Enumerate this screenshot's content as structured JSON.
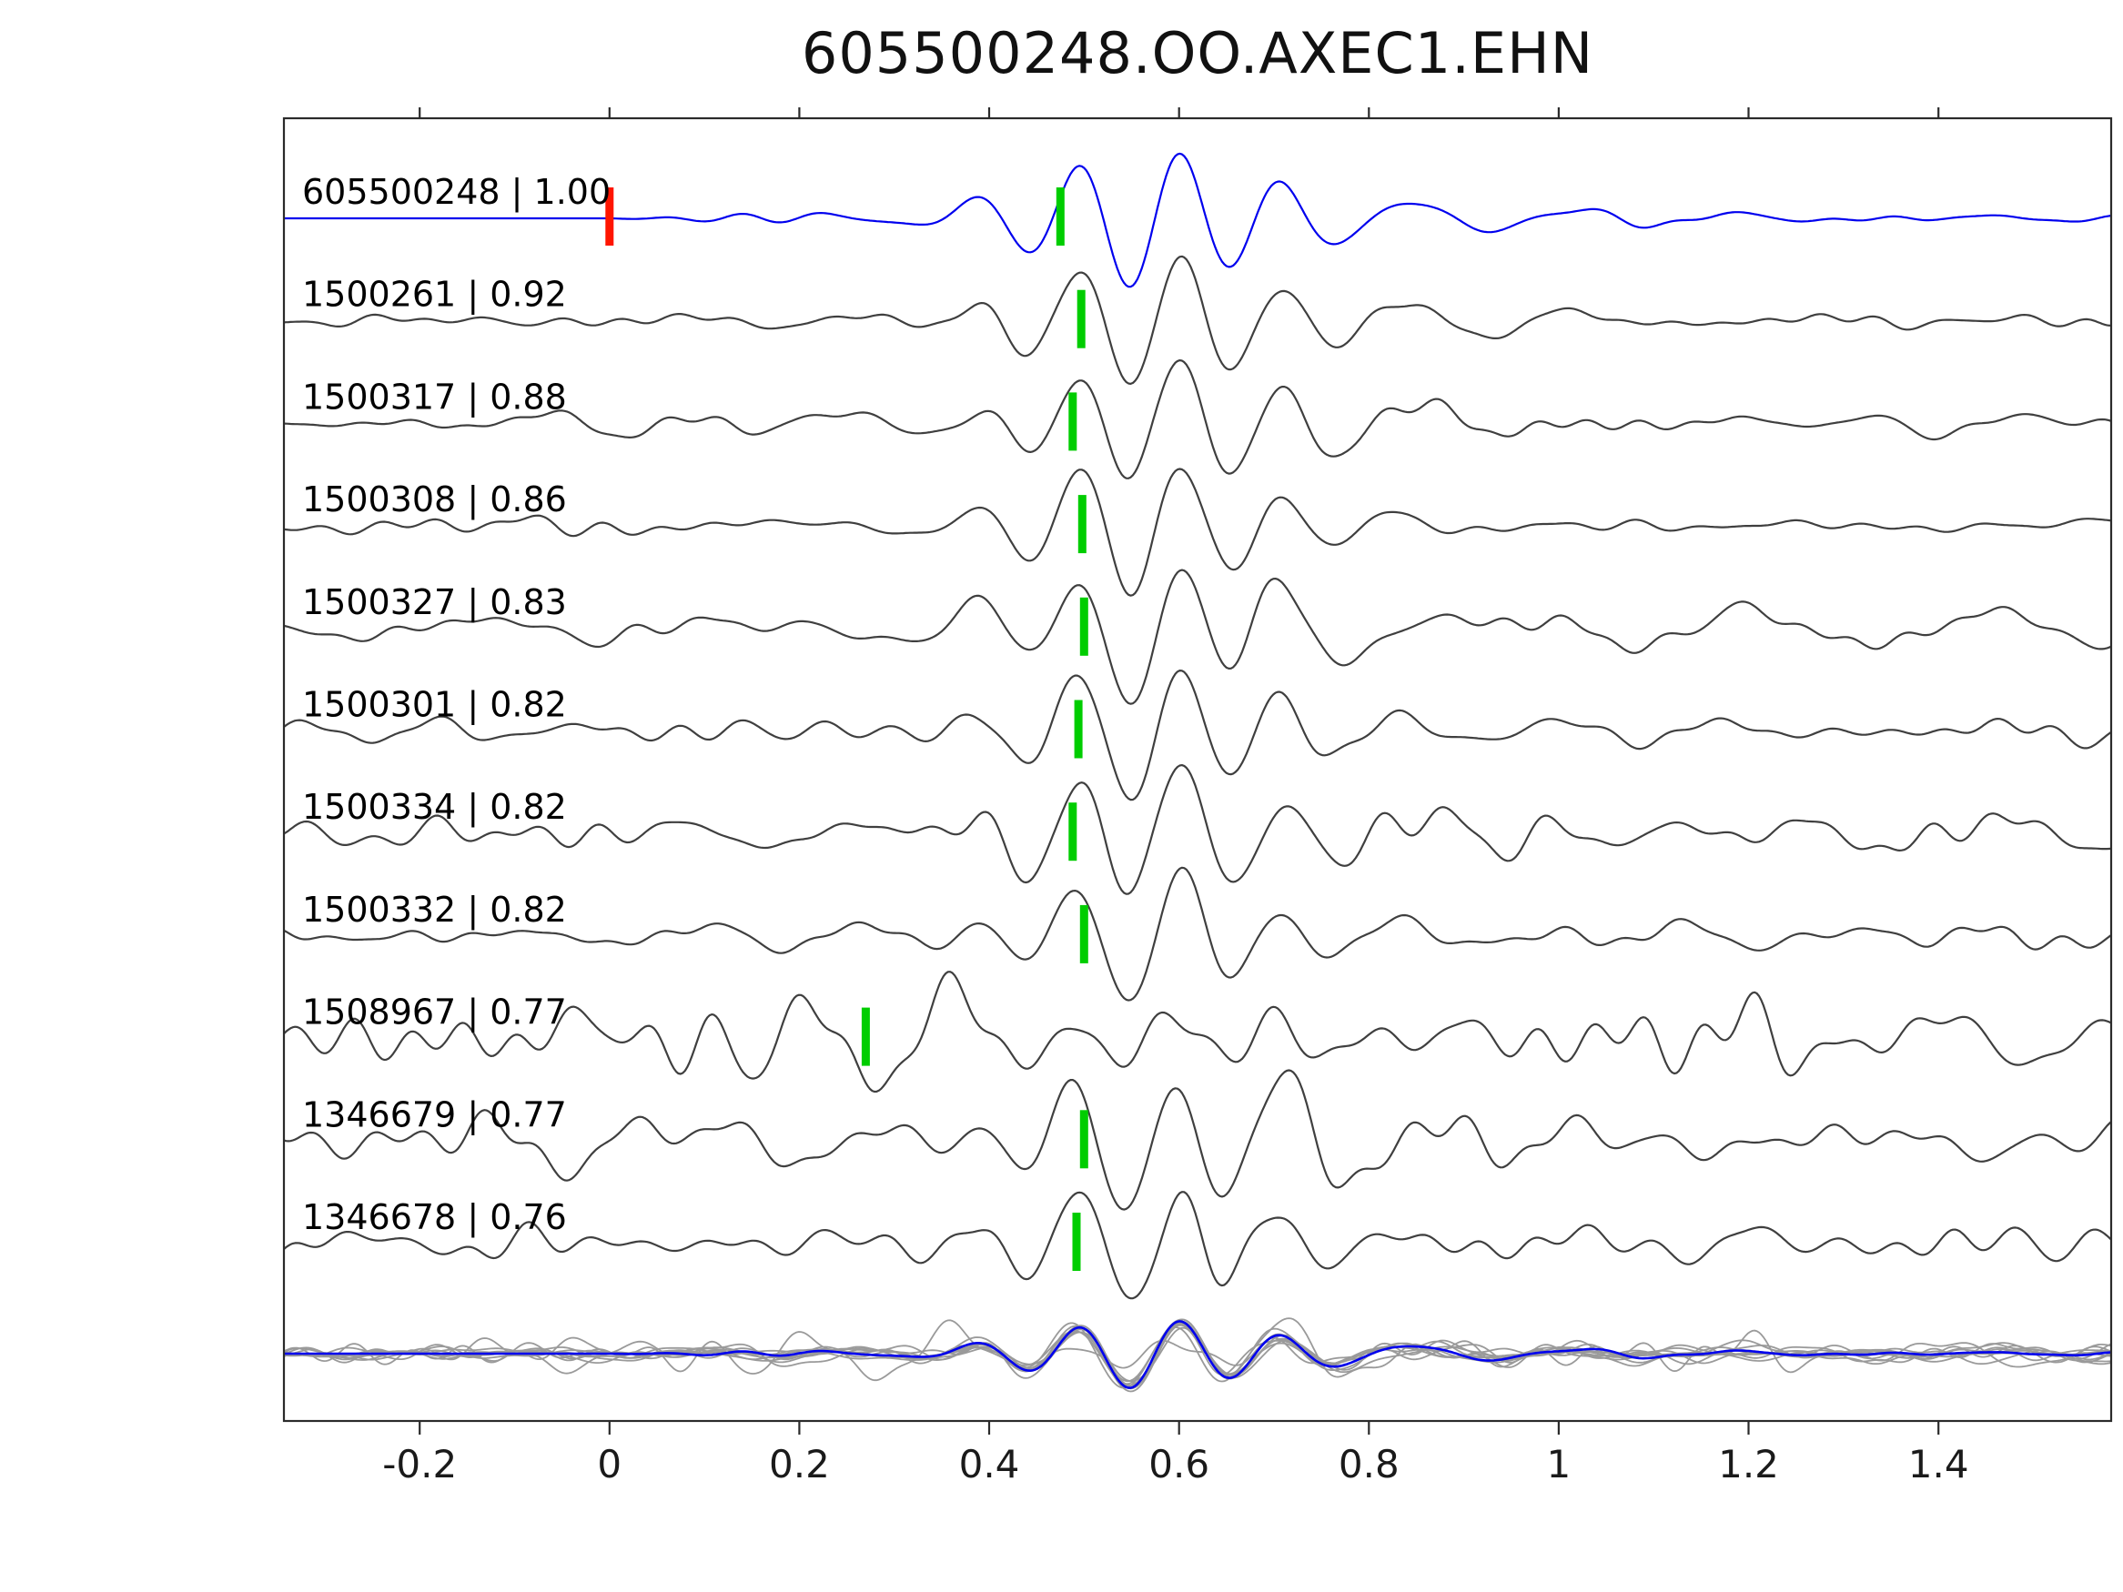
{
  "chart_data": {
    "type": "line",
    "kind": "seismic-waveform-correlation-stack",
    "title": "605500248.OO.AXEC1.EHN",
    "x_axis": {
      "ticks": [
        -0.2,
        0,
        0.2,
        0.4,
        0.6,
        0.8,
        1,
        1.2,
        1.4
      ],
      "tick_labels": [
        "-0.2",
        "0",
        "0.2",
        "0.4",
        "0.6",
        "0.8",
        "1",
        "1.2",
        "1.4"
      ],
      "range": [
        -0.343,
        1.582
      ]
    },
    "y_axis": {
      "visible": false
    },
    "grid": false,
    "legend": false,
    "colors": {
      "template": "#0000ee",
      "trace": "#3f3f3f",
      "overlay": "#9a9a9a",
      "pick_green": "#00cd00",
      "pick_red": "#ff1500",
      "axis": "#2b2b2b",
      "label_text": "#000000"
    },
    "traces": [
      {
        "id": "605500248",
        "correlation": "1.00",
        "label": "605500248 | 1.00",
        "role": "template",
        "picks": [
          {
            "x": 0.0,
            "color": "#ff1500"
          },
          {
            "x": 0.475,
            "color": "#00cd00"
          }
        ],
        "signal_amp": 1.0,
        "noise_amp": 0.05,
        "seed": 11
      },
      {
        "id": "1500261",
        "correlation": "0.92",
        "label": "1500261 | 0.92",
        "role": "match",
        "picks": [
          {
            "x": 0.497,
            "color": "#00cd00"
          }
        ],
        "signal_amp": 0.95,
        "noise_amp": 0.1,
        "seed": 23
      },
      {
        "id": "1500317",
        "correlation": "0.88",
        "label": "1500317 | 0.88",
        "role": "match",
        "picks": [
          {
            "x": 0.488,
            "color": "#00cd00"
          }
        ],
        "signal_amp": 0.92,
        "noise_amp": 0.13,
        "seed": 37
      },
      {
        "id": "1500308",
        "correlation": "0.86",
        "label": "1500308 | 0.86",
        "role": "match",
        "picks": [
          {
            "x": 0.498,
            "color": "#00cd00"
          }
        ],
        "signal_amp": 0.95,
        "noise_amp": 0.12,
        "seed": 41
      },
      {
        "id": "1500327",
        "correlation": "0.83",
        "label": "1500327 | 0.83",
        "role": "match",
        "picks": [
          {
            "x": 0.5,
            "color": "#00cd00"
          }
        ],
        "signal_amp": 0.92,
        "noise_amp": 0.15,
        "seed": 53
      },
      {
        "id": "1500301",
        "correlation": "0.82",
        "label": "1500301 | 0.82",
        "role": "match",
        "picks": [
          {
            "x": 0.494,
            "color": "#00cd00"
          }
        ],
        "signal_amp": 0.92,
        "noise_amp": 0.15,
        "seed": 67
      },
      {
        "id": "1500334",
        "correlation": "0.82",
        "label": "1500334 | 0.82",
        "role": "match",
        "picks": [
          {
            "x": 0.488,
            "color": "#00cd00"
          }
        ],
        "signal_amp": 0.9,
        "noise_amp": 0.25,
        "seed": 71
      },
      {
        "id": "1500332",
        "correlation": "0.82",
        "label": "1500332 | 0.82",
        "role": "match",
        "picks": [
          {
            "x": 0.5,
            "color": "#00cd00"
          }
        ],
        "signal_amp": 0.92,
        "noise_amp": 0.16,
        "seed": 83
      },
      {
        "id": "1508967",
        "correlation": "0.77",
        "label": "1508967 | 0.77",
        "role": "match",
        "picks": [
          {
            "x": 0.27,
            "color": "#00cd00"
          }
        ],
        "signal_amp": 0.35,
        "noise_amp": 0.5,
        "seed": 97,
        "burst": {
          "center": 0.12,
          "width": 0.17,
          "amp": 0.85
        }
      },
      {
        "id": "1346679",
        "correlation": "0.77",
        "label": "1346679 | 0.77",
        "role": "match",
        "picks": [
          {
            "x": 0.5,
            "color": "#00cd00"
          }
        ],
        "signal_amp": 0.8,
        "noise_amp": 0.36,
        "seed": 103
      },
      {
        "id": "1346678",
        "correlation": "0.76",
        "label": "1346678 | 0.76",
        "role": "match",
        "picks": [
          {
            "x": 0.492,
            "color": "#00cd00"
          }
        ],
        "signal_amp": 0.85,
        "noise_amp": 0.26,
        "seed": 113
      }
    ],
    "overlay_row": {
      "description": "all matched traces superimposed in gray with blue template on top",
      "has_label": false
    }
  }
}
